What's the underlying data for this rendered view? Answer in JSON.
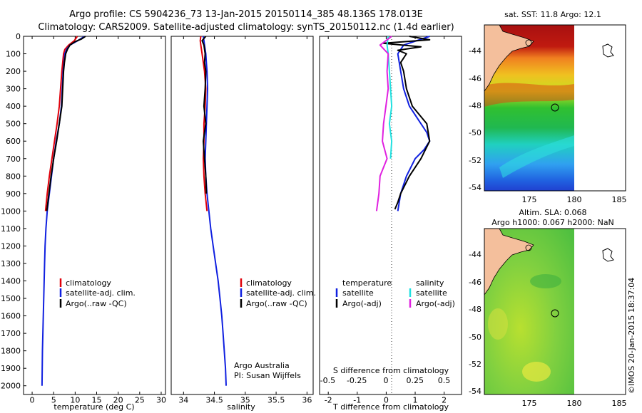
{
  "header": {
    "line1": "Argo profile: CS 5904236_73 13-Jan-2015 20150114_385 48.136S 178.013E",
    "line2": "Climatology: CARS2009. Satellite-adjusted climatology: synTS_20150112.nc (1.4d earlier)"
  },
  "colors": {
    "climatology": "#e0000a",
    "satellite": "#1020e0",
    "argo": "#000000",
    "satellite_salinity": "#20e0e0",
    "argo_salinity": "#e020e0",
    "land": "#f4bf9c"
  },
  "chart_data": [
    {
      "type": "line",
      "name": "temperature",
      "xlabel": "temperature (deg C)",
      "ylabel": "",
      "xlim": [
        -2,
        31
      ],
      "ylim": [
        2050,
        0
      ],
      "xticks": [
        0,
        5,
        10,
        15,
        20,
        25,
        30
      ],
      "yticks": [
        0,
        100,
        200,
        300,
        400,
        500,
        600,
        700,
        800,
        900,
        1000,
        1100,
        1200,
        1300,
        1400,
        1500,
        1600,
        1700,
        1800,
        1900,
        2000
      ],
      "legend": [
        "climatology",
        "satellite-adj. clim.",
        "Argo(..raw -QC)"
      ],
      "series": [
        {
          "name": "climatology",
          "depth": [
            0,
            25,
            50,
            75,
            100,
            150,
            200,
            300,
            400,
            500,
            600,
            700,
            800,
            900,
            1000
          ],
          "values": [
            10.5,
            9.8,
            8.5,
            7.6,
            7.3,
            7.1,
            6.9,
            6.6,
            6.3,
            5.8,
            5.2,
            4.6,
            4.0,
            3.5,
            3.1
          ]
        },
        {
          "name": "satellite-adj. clim.",
          "depth": [
            0,
            25,
            50,
            75,
            100,
            150,
            200,
            300,
            400,
            500,
            600,
            700,
            800,
            900,
            1000,
            1100,
            1200,
            1300,
            1400,
            1500,
            1600,
            1700,
            1800,
            1900,
            2000
          ],
          "values": [
            12.2,
            10.6,
            8.8,
            8.0,
            7.6,
            7.4,
            7.2,
            7.0,
            6.8,
            6.3,
            5.6,
            5.0,
            4.5,
            4.0,
            3.5,
            3.2,
            3.0,
            2.9,
            2.8,
            2.7,
            2.6,
            2.5,
            2.4,
            2.35,
            2.3
          ]
        },
        {
          "name": "Argo(..raw -QC)",
          "depth": [
            0,
            15,
            30,
            50,
            75,
            100,
            150,
            200,
            300,
            400,
            500,
            600,
            700,
            800,
            900,
            1000
          ],
          "values": [
            12.4,
            11.5,
            10.0,
            8.8,
            8.2,
            7.8,
            7.5,
            7.3,
            7.1,
            6.9,
            6.3,
            5.7,
            5.0,
            4.4,
            3.9,
            3.4
          ]
        }
      ]
    },
    {
      "type": "line",
      "name": "salinity",
      "xlabel": "salinity",
      "ylabel": "",
      "xlim": [
        33.8,
        36.1
      ],
      "ylim": [
        2050,
        0
      ],
      "xticks": [
        34,
        34.5,
        35,
        35.5,
        36
      ],
      "legend": [
        "climatology",
        "satellite-adj. clim.",
        "Argo(..raw -QC)"
      ],
      "annotation": [
        "Argo Australia",
        "PI: Susan Wijffels"
      ],
      "series": [
        {
          "name": "climatology",
          "depth": [
            0,
            25,
            50,
            100,
            150,
            200,
            300,
            400,
            500,
            600,
            700,
            800,
            900,
            1000
          ],
          "values": [
            34.28,
            34.27,
            34.28,
            34.3,
            34.32,
            34.34,
            34.36,
            34.35,
            34.33,
            34.33,
            34.32,
            34.33,
            34.35,
            34.38
          ]
        },
        {
          "name": "satellite-adj. clim.",
          "depth": [
            0,
            25,
            50,
            100,
            150,
            200,
            300,
            400,
            500,
            600,
            700,
            800,
            900,
            1000,
            1100,
            1200,
            1300,
            1400,
            1500,
            1600,
            1700,
            1800,
            1900,
            2000
          ],
          "values": [
            34.32,
            34.33,
            34.34,
            34.36,
            34.37,
            34.38,
            34.39,
            34.38,
            34.37,
            34.36,
            34.35,
            34.36,
            34.38,
            34.41,
            34.44,
            34.48,
            34.52,
            34.56,
            34.59,
            34.62,
            34.64,
            34.66,
            34.68,
            34.69
          ]
        },
        {
          "name": "Argo(..raw -QC)",
          "depth": [
            0,
            25,
            50,
            100,
            150,
            200,
            300,
            400,
            500,
            600,
            700,
            800,
            900
          ],
          "values": [
            34.36,
            34.3,
            34.33,
            34.35,
            34.34,
            34.36,
            34.35,
            34.33,
            34.36,
            34.32,
            34.34,
            34.36,
            34.37
          ]
        }
      ]
    },
    {
      "type": "line",
      "name": "difference",
      "xlabel": "T difference from climatology",
      "x2label": "S difference from climatology",
      "xlim": [
        -2.3,
        2.6
      ],
      "x2lim": [
        -0.57,
        0.65
      ],
      "ylim": [
        2050,
        0
      ],
      "xticks": [
        -2,
        -1,
        0,
        1,
        2
      ],
      "x2ticks": [
        "-0.5",
        "-0.25",
        "0",
        "0.25",
        "0.5"
      ],
      "legend_left": {
        "title": "temperature",
        "items": [
          "satellite",
          "Argo(-adj)"
        ]
      },
      "legend_right": {
        "title": "salinity",
        "items": [
          "satellite",
          "Argo(-adj)"
        ]
      },
      "series": [
        {
          "name": "temperature satellite",
          "depth": [
            0,
            50,
            100,
            200,
            300,
            400,
            500,
            550,
            600,
            650,
            700,
            800,
            900,
            1000
          ],
          "values": [
            1.5,
            0.6,
            0.4,
            0.5,
            0.6,
            0.8,
            1.2,
            1.4,
            1.5,
            1.3,
            1.0,
            0.7,
            0.5,
            0.4
          ]
        },
        {
          "name": "temperature Argo(-adj)",
          "depth": [
            0,
            20,
            40,
            60,
            80,
            100,
            150,
            200,
            300,
            400,
            500,
            600,
            700,
            800,
            900,
            950,
            990
          ],
          "values": [
            0.8,
            1.5,
            -0.1,
            1.2,
            0.4,
            0.7,
            0.5,
            0.6,
            0.7,
            0.9,
            1.4,
            1.5,
            1.2,
            0.8,
            0.5,
            0.4,
            0.3
          ]
        },
        {
          "name": "salinity satellite",
          "depth": [
            0,
            50,
            100,
            200,
            300,
            400,
            500,
            600,
            700
          ],
          "values": [
            0.02,
            0.01,
            0.02,
            0.03,
            0.04,
            0.05,
            0.03,
            0.05,
            0.04
          ]
        },
        {
          "name": "salinity Argo(-adj)",
          "depth": [
            0,
            50,
            100,
            200,
            300,
            400,
            500,
            600,
            700,
            800,
            900,
            1000
          ],
          "values": [
            0.05,
            -0.05,
            0.02,
            0.01,
            0.02,
            0.0,
            -0.02,
            -0.03,
            0.01,
            -0.05,
            -0.06,
            -0.08
          ]
        }
      ]
    }
  ],
  "maps": {
    "sst": {
      "title": "sat. SST: 11.8 Argo: 12.1",
      "xticks": [
        "175",
        "180",
        "185"
      ],
      "yticks": [
        "-44",
        "-46",
        "-48",
        "-50",
        "-52",
        "-54"
      ],
      "float_lon": 178.0,
      "float_lat": -48.1
    },
    "sla": {
      "title1": "Altim. SLA: 0.068",
      "title2": "Argo h1000: 0.067 h2000: NaN",
      "xticks": [
        "175",
        "180",
        "185"
      ],
      "yticks": [
        "-44",
        "-46",
        "-48",
        "-50",
        "-52",
        "-54"
      ],
      "float_lon": 178.0,
      "float_lat": -48.1
    }
  },
  "credit": "©IMOS 20-Jan-2015 18:37:04"
}
